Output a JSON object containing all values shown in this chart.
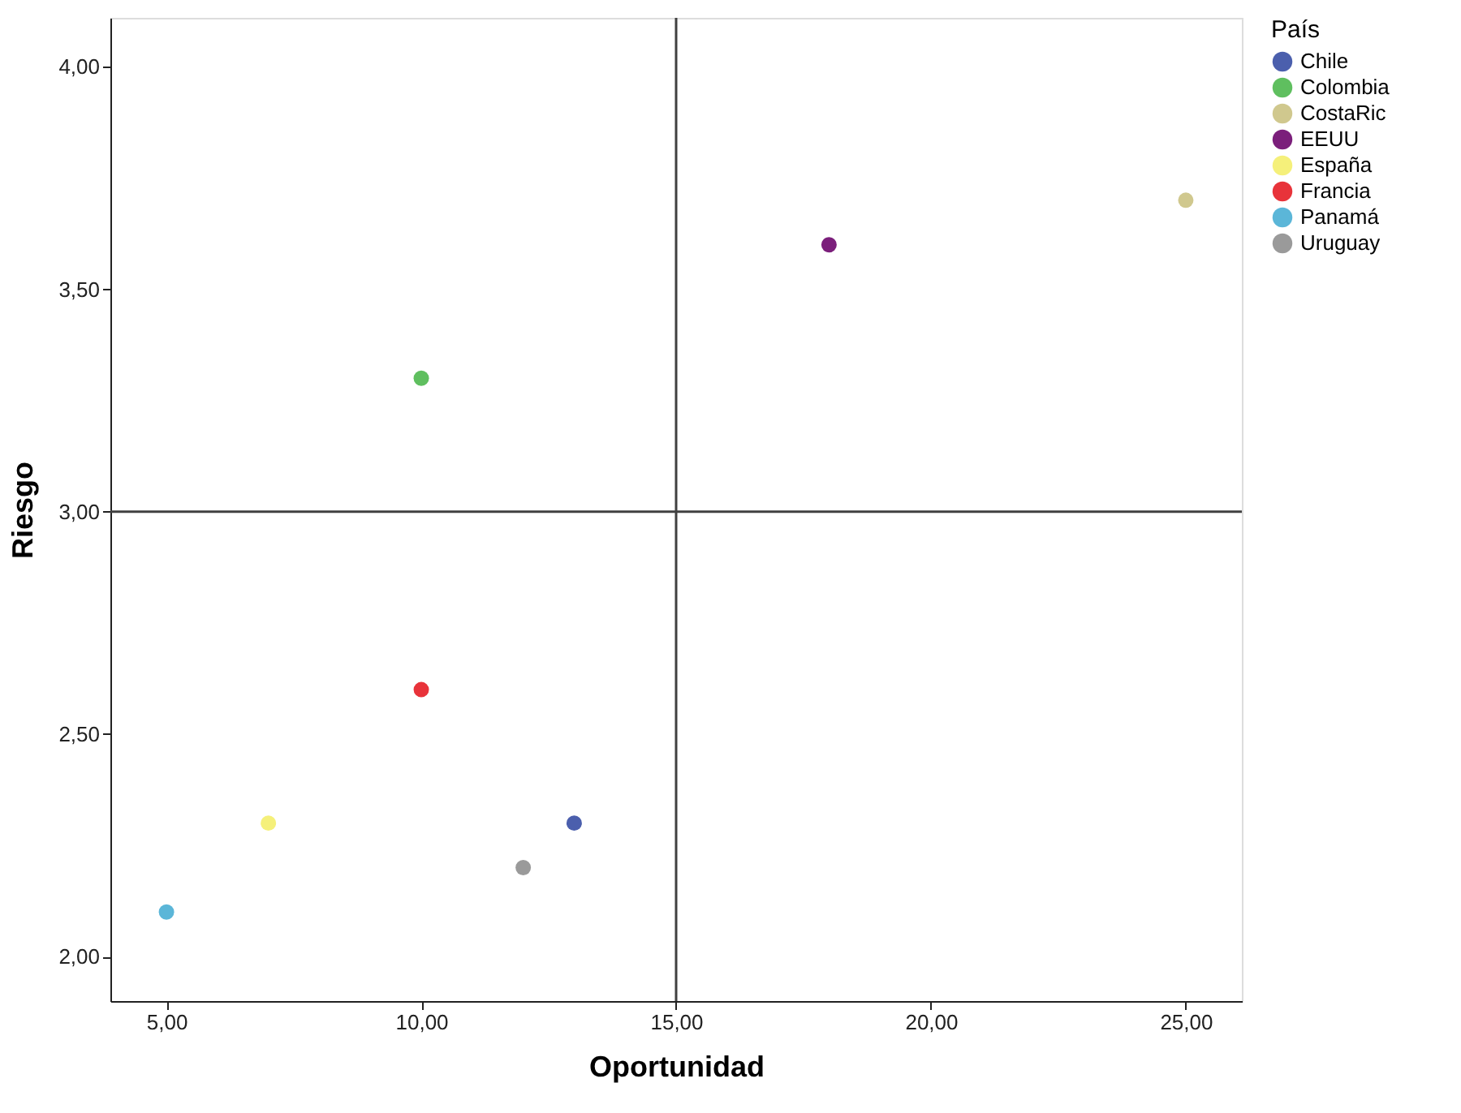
{
  "chart_data": {
    "type": "scatter",
    "xlabel": "Oportunidad",
    "ylabel": "Riesgo",
    "legend_title": "País",
    "legend": "right",
    "marker": "circle",
    "grid": false,
    "xlim": [
      3.9,
      26.1
    ],
    "ylim": [
      1.9,
      4.11
    ],
    "xticks": [
      {
        "value": 5,
        "label": "5,00"
      },
      {
        "value": 10,
        "label": "10,00"
      },
      {
        "value": 15,
        "label": "15,00"
      },
      {
        "value": 20,
        "label": "20,00"
      },
      {
        "value": 25,
        "label": "25,00"
      }
    ],
    "yticks": [
      {
        "value": 2,
        "label": "2,00"
      },
      {
        "value": 2.5,
        "label": "2,50"
      },
      {
        "value": 3,
        "label": "3,00"
      },
      {
        "value": 3.5,
        "label": "3,50"
      },
      {
        "value": 4,
        "label": "4,00"
      }
    ],
    "ref_lines": [
      {
        "axis": "x",
        "value": 15,
        "label": null,
        "color": "#404040"
      },
      {
        "axis": "y",
        "value": 3,
        "label": null,
        "color": "#404040"
      }
    ],
    "series": [
      {
        "name": "Chile",
        "color": "#4b5fad",
        "x": [
          13
        ],
        "values": [
          2.3
        ]
      },
      {
        "name": "Colombia",
        "color": "#5fbf5f",
        "x": [
          10
        ],
        "values": [
          3.3
        ]
      },
      {
        "name": "CostaRic",
        "color": "#d0c88e",
        "x": [
          25
        ],
        "values": [
          3.7
        ]
      },
      {
        "name": "EEUU",
        "color": "#7b1f7b",
        "x": [
          18
        ],
        "values": [
          3.6
        ]
      },
      {
        "name": "España",
        "color": "#f5f07a",
        "x": [
          7
        ],
        "values": [
          2.3
        ]
      },
      {
        "name": "Francia",
        "color": "#e8333a",
        "x": [
          10
        ],
        "values": [
          2.6
        ]
      },
      {
        "name": "Panamá",
        "color": "#5bb6d8",
        "x": [
          5
        ],
        "values": [
          2.1
        ]
      },
      {
        "name": "Uruguay",
        "color": "#9a9a9a",
        "x": [
          12
        ],
        "values": [
          2.2
        ]
      }
    ]
  }
}
